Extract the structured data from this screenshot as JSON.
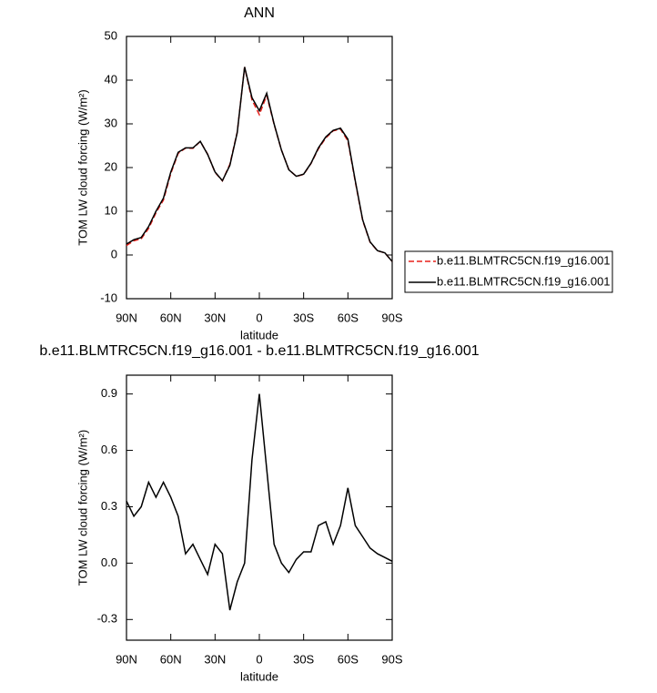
{
  "chart_data": [
    {
      "type": "line",
      "title": "ANN",
      "x_label": "latitude",
      "y_label": "TOM LW cloud forcing (W/m²)",
      "x": [
        90,
        85,
        80,
        75,
        70,
        65,
        60,
        55,
        50,
        45,
        40,
        35,
        30,
        25,
        20,
        15,
        10,
        5,
        0,
        -5,
        -10,
        -15,
        -20,
        -25,
        -30,
        -35,
        -40,
        -45,
        -50,
        -55,
        -60,
        -65,
        -70,
        -75,
        -80,
        -85,
        -90
      ],
      "series": [
        {
          "name": "b.e11.BLMTRC5CN.f19_g16.001",
          "color": "#e8201a",
          "style": "dashed",
          "values": [
            2.17,
            3.25,
            3.7,
            6.07,
            9.65,
            12.57,
            18.65,
            23.25,
            24.45,
            24.4,
            25.98,
            23.06,
            18.9,
            16.95,
            20.75,
            28.1,
            43,
            35.45,
            32.1,
            36.5,
            29.9,
            24,
            19.55,
            17.98,
            18.44,
            20.94,
            24.3,
            26.78,
            28.4,
            28.8,
            26.1,
            16.8,
            7.86,
            2.92,
            0.95,
            0.47,
            -1.51
          ]
        },
        {
          "name": "b.e11.BLMTRC5CN.f19_g16.001",
          "color": "#000000",
          "style": "solid",
          "values": [
            2.5,
            3.5,
            4,
            6.5,
            10,
            13,
            19,
            23.5,
            24.5,
            24.5,
            26,
            23,
            19,
            17,
            20.5,
            28,
            43,
            36,
            33,
            37,
            30,
            24,
            19.5,
            18,
            18.5,
            21,
            24.5,
            27,
            28.5,
            29,
            26.5,
            17,
            8,
            3,
            1,
            0.5,
            -1.5
          ]
        }
      ],
      "xlim": [
        90,
        -90
      ],
      "xticks": [
        {
          "value": 90,
          "label": "90N"
        },
        {
          "value": 60,
          "label": "60N"
        },
        {
          "value": 30,
          "label": "30N"
        },
        0,
        {
          "value": -30,
          "label": "30S"
        },
        {
          "value": -60,
          "label": "60S"
        },
        {
          "value": -90,
          "label": "90S"
        }
      ],
      "ylim": [
        -10,
        50
      ],
      "yticks": [
        -10,
        0,
        10,
        20,
        30,
        40,
        50
      ],
      "legend": "right"
    },
    {
      "type": "line",
      "title": "b.e11.BLMTRC5CN.f19_g16.001 - b.e11.BLMTRC5CN.f19_g16.001",
      "x_label": "latitude",
      "y_label": "TOM LW cloud forcing (W/m²)",
      "x": [
        90,
        85,
        80,
        75,
        70,
        65,
        60,
        55,
        50,
        45,
        40,
        35,
        30,
        25,
        20,
        15,
        10,
        5,
        0,
        -5,
        -10,
        -15,
        -20,
        -25,
        -30,
        -35,
        -40,
        -45,
        -50,
        -55,
        -60,
        -65,
        -70,
        -75,
        -80,
        -85,
        -90
      ],
      "series": [
        {
          "color": "#000000",
          "style": "solid",
          "values": [
            0.33,
            0.25,
            0.3,
            0.43,
            0.35,
            0.43,
            0.35,
            0.25,
            0.05,
            0.1,
            0.02,
            -0.06,
            0.1,
            0.05,
            -0.25,
            -0.1,
            0.0,
            0.55,
            0.9,
            0.5,
            0.1,
            0.0,
            -0.05,
            0.02,
            0.06,
            0.06,
            0.2,
            0.22,
            0.1,
            0.2,
            0.4,
            0.2,
            0.14,
            0.08,
            0.05,
            0.03,
            0.01
          ]
        }
      ],
      "xlim": [
        90,
        -90
      ],
      "xticks": [
        {
          "value": 90,
          "label": "90N"
        },
        {
          "value": 60,
          "label": "60N"
        },
        {
          "value": 30,
          "label": "30N"
        },
        0,
        {
          "value": -30,
          "label": "30S"
        },
        {
          "value": -60,
          "label": "60S"
        },
        {
          "value": -90,
          "label": "90S"
        }
      ],
      "ylim": [
        -0.41,
        1.0
      ],
      "yticks": [
        {
          "value": -0.3,
          "label": "-0.3"
        },
        {
          "value": 0,
          "label": "0.0"
        },
        0.3,
        0.6,
        0.9
      ]
    }
  ]
}
